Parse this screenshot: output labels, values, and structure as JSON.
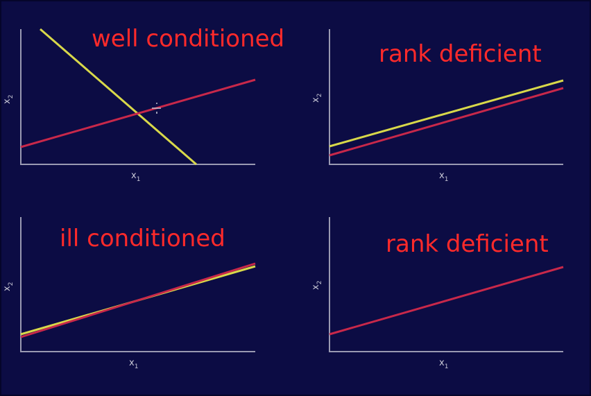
{
  "panels": [
    {
      "caption": "well conditioned",
      "xlabel": "x",
      "xlabel_sub": "1",
      "ylabel": "x",
      "ylabel_sub": "2"
    },
    {
      "caption": "rank deficient",
      "xlabel": "x",
      "xlabel_sub": "1",
      "ylabel": "x",
      "ylabel_sub": "2"
    },
    {
      "caption": "ill conditioned",
      "xlabel": "x",
      "xlabel_sub": "1",
      "ylabel": "x",
      "ylabel_sub": "2"
    },
    {
      "caption": "rank deficient",
      "xlabel": "x",
      "xlabel_sub": "1",
      "ylabel": "x",
      "ylabel_sub": "2"
    }
  ],
  "colors": {
    "background": "#0c0c44",
    "caption": "#ff2a2a",
    "line_yellow": "#d8d84a",
    "line_red": "#c8284a",
    "axis": "#9a9ab2"
  }
}
